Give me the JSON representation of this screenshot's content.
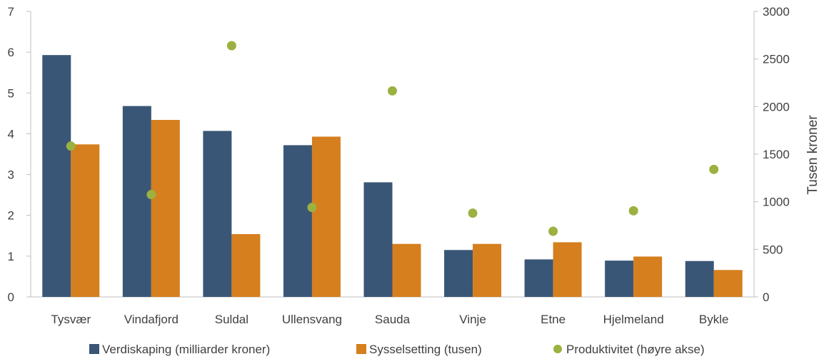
{
  "chart_data": {
    "type": "bar",
    "categories": [
      "Tysvær",
      "Vindafjord",
      "Suldal",
      "Ullensvang",
      "Sauda",
      "Vinje",
      "Etne",
      "Hjelmeland",
      "Bykle"
    ],
    "series": [
      {
        "name": "Verdiskaping (milliarder kroner)",
        "type": "bar",
        "axis": "left",
        "color": "#3A5676",
        "values": [
          5.93,
          4.68,
          4.07,
          3.72,
          2.81,
          1.15,
          0.92,
          0.89,
          0.88
        ]
      },
      {
        "name": "Sysselsetting (tusen)",
        "type": "bar",
        "axis": "left",
        "color": "#D57F1E",
        "values": [
          3.74,
          4.34,
          1.54,
          3.93,
          1.3,
          1.3,
          1.34,
          0.99,
          0.66
        ]
      },
      {
        "name": "Produktivitet (høyre akse)",
        "type": "scatter",
        "axis": "right",
        "color": "#9BB140",
        "values": [
          1585,
          1075,
          2640,
          940,
          2165,
          880,
          690,
          905,
          1340
        ]
      }
    ],
    "y_left": {
      "min": 0,
      "max": 7,
      "step": 1,
      "ticks": [
        "0",
        "1",
        "2",
        "3",
        "4",
        "5",
        "6",
        "7"
      ]
    },
    "y_right": {
      "min": 0,
      "max": 3000,
      "step": 500,
      "ticks": [
        "0",
        "500",
        "1000",
        "1500",
        "2000",
        "2500",
        "3000"
      ],
      "label": "Tusen kroner"
    },
    "grid": false,
    "legend_position": "bottom"
  }
}
